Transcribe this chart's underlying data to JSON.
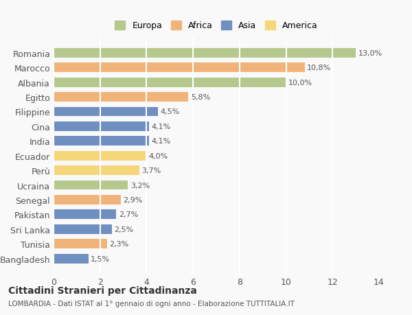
{
  "categories": [
    "Romania",
    "Marocco",
    "Albania",
    "Egitto",
    "Filippine",
    "Cina",
    "India",
    "Ecuador",
    "Perù",
    "Ucraina",
    "Senegal",
    "Pakistan",
    "Sri Lanka",
    "Tunisia",
    "Bangladesh"
  ],
  "values": [
    13.0,
    10.8,
    10.0,
    5.8,
    4.5,
    4.1,
    4.1,
    4.0,
    3.7,
    3.2,
    2.9,
    2.7,
    2.5,
    2.3,
    1.5
  ],
  "labels": [
    "13,0%",
    "10,8%",
    "10,0%",
    "5,8%",
    "4,5%",
    "4,1%",
    "4,1%",
    "4,0%",
    "3,7%",
    "3,2%",
    "2,9%",
    "2,7%",
    "2,5%",
    "2,3%",
    "1,5%"
  ],
  "colors": [
    "#b5c98e",
    "#f0b47a",
    "#b5c98e",
    "#f0b47a",
    "#6e8fc0",
    "#6e8fc0",
    "#6e8fc0",
    "#f5d67a",
    "#f5d67a",
    "#b5c98e",
    "#f0b47a",
    "#6e8fc0",
    "#6e8fc0",
    "#f0b47a",
    "#6e8fc0"
  ],
  "legend_labels": [
    "Europa",
    "Africa",
    "Asia",
    "America"
  ],
  "legend_colors": [
    "#b5c98e",
    "#f0b47a",
    "#6e8fc0",
    "#f5d67a"
  ],
  "title": "Cittadini Stranieri per Cittadinanza",
  "subtitle": "LOMBARDIA - Dati ISTAT al 1° gennaio di ogni anno - Elaborazione TUTTITALIA.IT",
  "xlim": [
    0,
    14
  ],
  "xticks": [
    0,
    2,
    4,
    6,
    8,
    10,
    12,
    14
  ],
  "background_color": "#f9f9f9",
  "grid_color": "#ffffff",
  "bar_height": 0.65
}
